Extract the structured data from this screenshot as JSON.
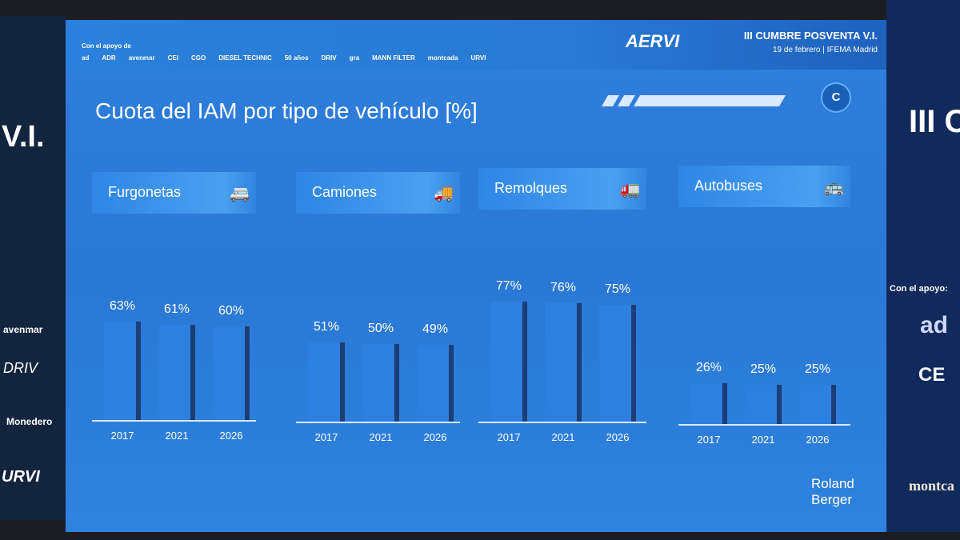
{
  "header": {
    "support_label": "Con el apoyo de",
    "sponsors": [
      "ad",
      "ADR",
      "avenmar",
      "CEI",
      "CGO",
      "DIESEL TECHNIC",
      "50 años",
      "DRIV",
      "gra",
      "MANN FILTER",
      "montcada",
      "URVI"
    ],
    "brand": "AERVI",
    "event": "III CUMBRE POSVENTA V.I.",
    "event_date": "19 de febrero | IFEMA Madrid"
  },
  "slide": {
    "badge": "C",
    "source": "Roland Berger"
  },
  "left_banner": {
    "title": "V.I.",
    "logos": [
      "avenmar",
      "DRIV",
      "Monedero",
      "URVI"
    ]
  },
  "right_banner": {
    "title": "III C",
    "support_label": "Con el apoyo:",
    "logos": [
      "ad",
      "CE",
      "montca"
    ]
  },
  "chart_data": {
    "type": "bar",
    "title": "Cuota del IAM por tipo de vehículo [%]",
    "ylabel": "%",
    "ylim": [
      0,
      100
    ],
    "grid": false,
    "groups": [
      {
        "name": "Furgonetas",
        "icon": "van-icon",
        "categories": [
          "2017",
          "2021",
          "2026"
        ],
        "values": [
          63,
          61,
          60
        ]
      },
      {
        "name": "Camiones",
        "icon": "truck-icon",
        "categories": [
          "2017",
          "2021",
          "2026"
        ],
        "values": [
          51,
          50,
          49
        ]
      },
      {
        "name": "Remolques",
        "icon": "trailer-icon",
        "categories": [
          "2017",
          "2021",
          "2026"
        ],
        "values": [
          77,
          76,
          75
        ]
      },
      {
        "name": "Autobuses",
        "icon": "bus-icon",
        "categories": [
          "2017",
          "2021",
          "2026"
        ],
        "values": [
          26,
          25,
          25
        ]
      }
    ]
  }
}
